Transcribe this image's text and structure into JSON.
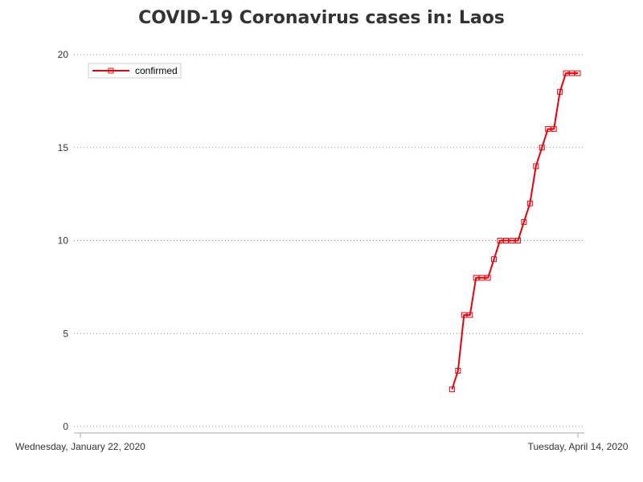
{
  "title": "COVID-19 Coronavirus cases in: Laos",
  "colors": {
    "series": "#e8000b",
    "grid": "#888888",
    "axis": "#aaaaaa",
    "text": "#333333"
  },
  "chart_data": {
    "type": "line",
    "title": "COVID-19 Coronavirus cases in: Laos",
    "xlabel": "",
    "ylabel": "",
    "x_tick_labels": [
      "Wednesday, January 22, 2020",
      "Tuesday, April 14, 2020"
    ],
    "xlim": [
      "2020-01-22",
      "2020-04-14"
    ],
    "ylim": [
      0,
      20
    ],
    "y_ticks": [
      0,
      5,
      10,
      15,
      20
    ],
    "grid": "horizontal dotted",
    "legend": {
      "placement": "top-left",
      "entries": [
        "confirmed"
      ]
    },
    "series": [
      {
        "name": "confirmed",
        "marker": "square",
        "x": [
          "2020-03-24",
          "2020-03-25",
          "2020-03-26",
          "2020-03-27",
          "2020-03-28",
          "2020-03-29",
          "2020-03-30",
          "2020-03-31",
          "2020-04-01",
          "2020-04-02",
          "2020-04-03",
          "2020-04-04",
          "2020-04-05",
          "2020-04-06",
          "2020-04-07",
          "2020-04-08",
          "2020-04-09",
          "2020-04-10",
          "2020-04-11",
          "2020-04-12",
          "2020-04-13",
          "2020-04-14"
        ],
        "values": [
          2,
          3,
          6,
          6,
          8,
          8,
          8,
          9,
          10,
          10,
          10,
          10,
          11,
          12,
          14,
          15,
          16,
          16,
          18,
          19,
          19,
          19
        ]
      }
    ]
  }
}
